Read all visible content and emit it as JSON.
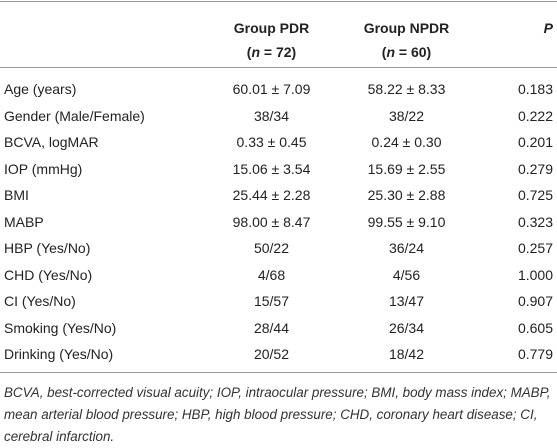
{
  "table": {
    "header": {
      "columns": [
        {
          "title": "Group PDR",
          "subtitle": [
            "(",
            "n",
            " = 72)"
          ]
        },
        {
          "title": "Group NPDR",
          "subtitle": [
            "(",
            "n",
            " = 60)"
          ]
        },
        {
          "title": "P"
        }
      ]
    },
    "rows": [
      [
        "Age (years)",
        "60.01 ± 7.09",
        "58.22 ± 8.33",
        "0.183"
      ],
      [
        "Gender (Male/Female)",
        "38/34",
        "38/22",
        "0.222"
      ],
      [
        "BCVA, logMAR",
        "0.33 ± 0.45",
        "0.24 ± 0.30",
        "0.201"
      ],
      [
        "IOP (mmHg)",
        "15.06 ± 3.54",
        "15.69 ± 2.55",
        "0.279"
      ],
      [
        "BMI",
        "25.44 ± 2.28",
        "25.30 ± 2.88",
        "0.725"
      ],
      [
        "MABP",
        "98.00 ± 8.47",
        "99.55 ± 9.10",
        "0.323"
      ],
      [
        "HBP (Yes/No)",
        "50/22",
        "36/24",
        "0.257"
      ],
      [
        "CHD (Yes/No)",
        "4/68",
        "4/56",
        "1.000"
      ],
      [
        "CI (Yes/No)",
        "15/57",
        "13/47",
        "0.907"
      ],
      [
        "Smoking (Yes/No)",
        "28/44",
        "26/34",
        "0.605"
      ],
      [
        "Drinking (Yes/No)",
        "20/52",
        "18/42",
        "0.779"
      ]
    ],
    "footnote": "BCVA, best-corrected visual acuity; IOP, intraocular pressure; BMI, body mass index; MABP, mean arterial blood pressure; HBP, high blood pressure; CHD, coronary heart disease; CI, cerebral infarction."
  }
}
